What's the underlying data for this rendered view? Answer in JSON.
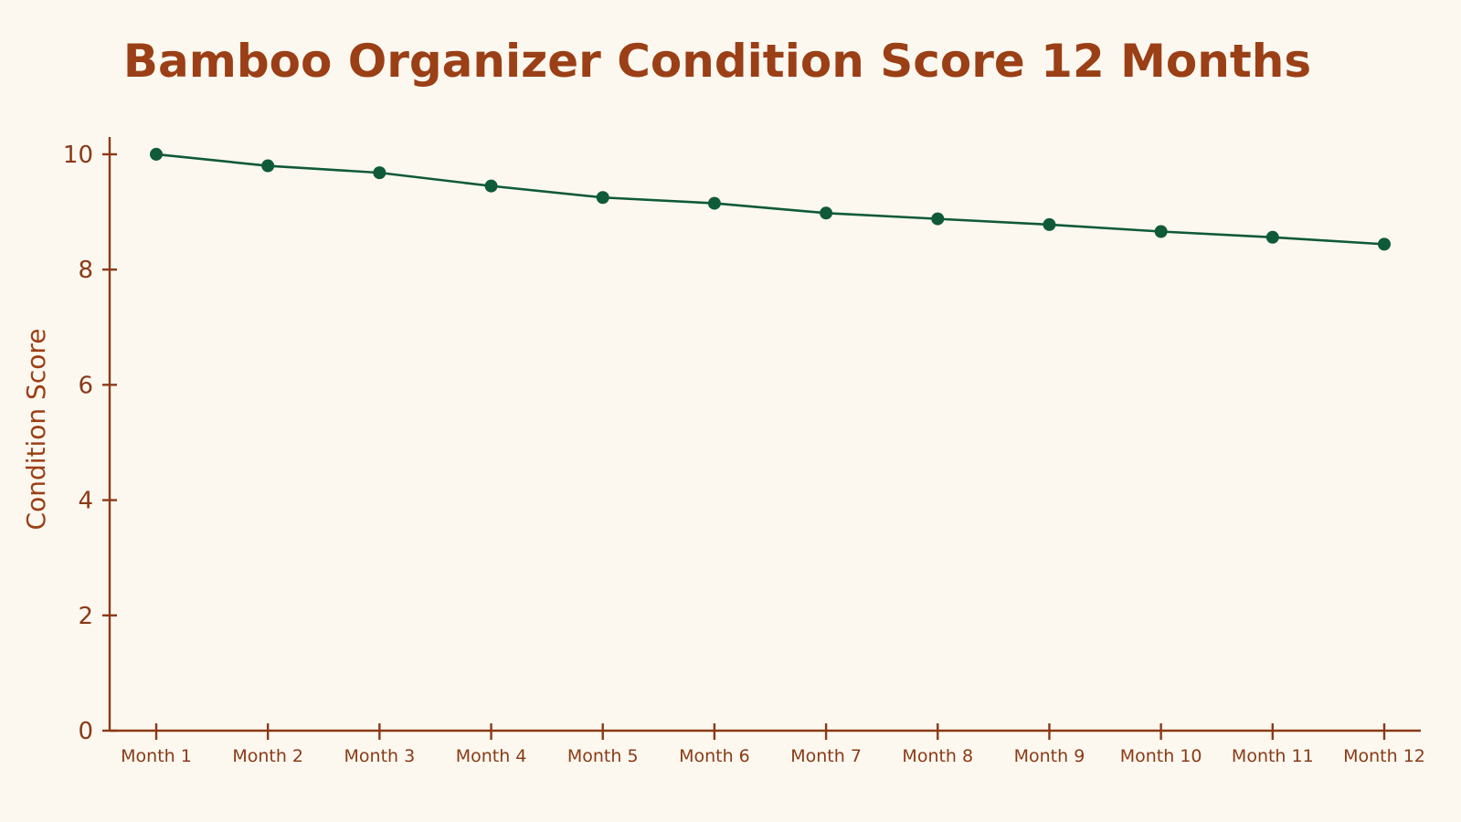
{
  "chart_data": {
    "type": "line",
    "title": "Bamboo Organizer Condition Score 12 Months",
    "xlabel": "",
    "ylabel": "Condition Score",
    "categories": [
      "Month 1",
      "Month 2",
      "Month 3",
      "Month 4",
      "Month 5",
      "Month 6",
      "Month 7",
      "Month 8",
      "Month 9",
      "Month 10",
      "Month 11",
      "Month 12"
    ],
    "series": [
      {
        "values": [
          10.0,
          9.8,
          9.68,
          9.45,
          9.25,
          9.15,
          8.98,
          8.88,
          8.78,
          8.66,
          8.56,
          8.44
        ]
      }
    ],
    "ylim": [
      0,
      10.3
    ],
    "yticks": [
      0,
      2,
      4,
      6,
      8,
      10
    ],
    "grid": false,
    "legend": "none",
    "colors": {
      "background": "#fcf8ef",
      "title": "#9b3f16",
      "axis": "#8a3a17",
      "series": "#0f5a38"
    }
  }
}
